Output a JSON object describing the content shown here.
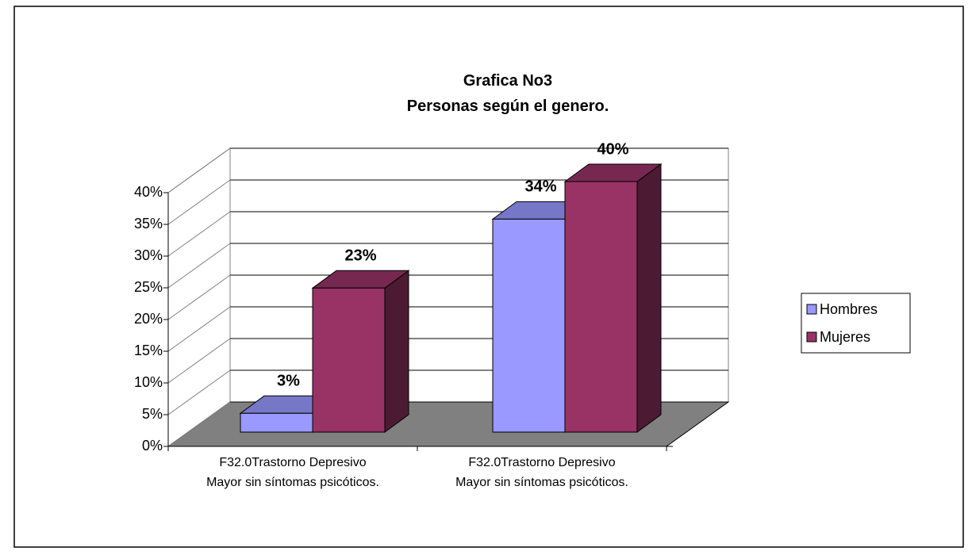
{
  "chart_data": {
    "type": "bar3d",
    "title": "Grafica No3\nPersonas  según el genero.",
    "categories": [
      "F32.0Trastorno Depresivo\nMayor sin síntomas psicóticos.",
      "F32.0Trastorno Depresivo\nMayor sin síntomas psicóticos."
    ],
    "series": [
      {
        "name": "Hombres",
        "color": "#9999ff",
        "values": [
          3,
          34
        ],
        "value_labels": [
          "3%",
          "34%"
        ]
      },
      {
        "name": "Mujeres",
        "color": "#993366",
        "values": [
          23,
          40
        ],
        "value_labels": [
          "23%",
          "40%"
        ]
      }
    ],
    "ylim": [
      0,
      40
    ],
    "yticks": [
      {
        "value": 0,
        "label": "0%"
      },
      {
        "value": 5,
        "label": "5%"
      },
      {
        "value": 10,
        "label": "10%"
      },
      {
        "value": 15,
        "label": "15%"
      },
      {
        "value": 20,
        "label": "20%"
      },
      {
        "value": 25,
        "label": "25%"
      },
      {
        "value": 30,
        "label": "30%"
      },
      {
        "value": 35,
        "label": "35%"
      },
      {
        "value": 40,
        "label": "40%"
      }
    ],
    "grid": true,
    "legend": "right"
  }
}
